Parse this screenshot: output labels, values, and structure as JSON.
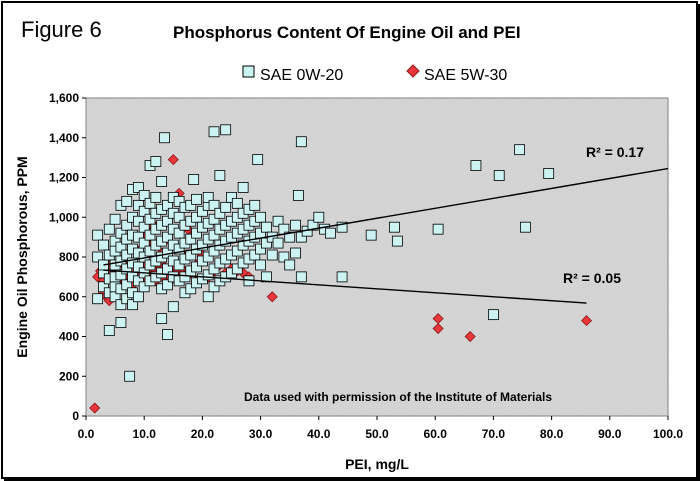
{
  "figure_label": "Figure 6",
  "chart_data": {
    "type": "scatter",
    "title": "Phosphorus Content Of Engine Oil and PEI",
    "xlabel": "PEI, mg/L",
    "ylabel": "Engine Oil Phosphorous, PPM",
    "xlim": [
      0,
      100
    ],
    "ylim": [
      0,
      1600
    ],
    "x_ticks": [
      "0.0",
      "10.0",
      "20.0",
      "30.0",
      "40.0",
      "50.0",
      "60.0",
      "70.0",
      "80.0",
      "90.0",
      "100.0"
    ],
    "y_ticks": [
      "0",
      "200",
      "400",
      "600",
      "800",
      "1,000",
      "1,200",
      "1,400",
      "1,600"
    ],
    "grid": false,
    "legend_position": "top",
    "annotation": "Data used with permission of the Institute of Materials",
    "series": [
      {
        "name": "SAE 0W-20",
        "marker": "square",
        "color": "#ccf2f2",
        "stroke": "#000000",
        "points": [
          [
            2,
            590
          ],
          [
            2,
            800
          ],
          [
            2,
            910
          ],
          [
            3,
            650
          ],
          [
            3,
            720
          ],
          [
            3,
            760
          ],
          [
            3,
            860
          ],
          [
            4,
            430
          ],
          [
            4,
            620
          ],
          [
            4,
            690
          ],
          [
            4,
            810
          ],
          [
            4,
            940
          ],
          [
            5,
            600
          ],
          [
            5,
            650
          ],
          [
            5,
            700
          ],
          [
            5,
            760
          ],
          [
            5,
            830
          ],
          [
            5,
            880
          ],
          [
            5,
            990
          ],
          [
            6,
            470
          ],
          [
            6,
            560
          ],
          [
            6,
            640
          ],
          [
            6,
            710
          ],
          [
            6,
            780
          ],
          [
            6,
            850
          ],
          [
            6,
            920
          ],
          [
            6,
            1060
          ],
          [
            7,
            590
          ],
          [
            7,
            660
          ],
          [
            7,
            740
          ],
          [
            7,
            810
          ],
          [
            7,
            890
          ],
          [
            7,
            960
          ],
          [
            7,
            1080
          ],
          [
            7.5,
            200
          ],
          [
            8,
            560
          ],
          [
            8,
            620
          ],
          [
            8,
            700
          ],
          [
            8,
            770
          ],
          [
            8,
            840
          ],
          [
            8,
            910
          ],
          [
            8,
            1000
          ],
          [
            8,
            1140
          ],
          [
            9,
            600
          ],
          [
            9,
            680
          ],
          [
            9,
            750
          ],
          [
            9,
            820
          ],
          [
            9,
            900
          ],
          [
            9,
            980
          ],
          [
            9,
            1060
          ],
          [
            9,
            1150
          ],
          [
            10,
            650
          ],
          [
            10,
            720
          ],
          [
            10,
            800
          ],
          [
            10,
            870
          ],
          [
            10,
            950
          ],
          [
            10,
            1030
          ],
          [
            10,
            1110
          ],
          [
            11,
            680
          ],
          [
            11,
            760
          ],
          [
            11,
            830
          ],
          [
            11,
            910
          ],
          [
            11,
            990
          ],
          [
            11,
            1070
          ],
          [
            11,
            1260
          ],
          [
            12,
            700
          ],
          [
            12,
            780
          ],
          [
            12,
            860
          ],
          [
            12,
            940
          ],
          [
            12,
            1020
          ],
          [
            12,
            1100
          ],
          [
            12,
            1280
          ],
          [
            13,
            490
          ],
          [
            13,
            640
          ],
          [
            13,
            720
          ],
          [
            13,
            800
          ],
          [
            13,
            880
          ],
          [
            13,
            960
          ],
          [
            13,
            1040
          ],
          [
            13,
            1180
          ],
          [
            13.5,
            1400
          ],
          [
            14,
            410
          ],
          [
            14,
            660
          ],
          [
            14,
            740
          ],
          [
            14,
            820
          ],
          [
            14,
            900
          ],
          [
            14,
            980
          ],
          [
            14,
            1060
          ],
          [
            15,
            550
          ],
          [
            15,
            700
          ],
          [
            15,
            780
          ],
          [
            15,
            860
          ],
          [
            15,
            940
          ],
          [
            15,
            1020
          ],
          [
            15,
            1100
          ],
          [
            16,
            680
          ],
          [
            16,
            760
          ],
          [
            16,
            840
          ],
          [
            16,
            920
          ],
          [
            16,
            1000
          ],
          [
            16,
            1080
          ],
          [
            17,
            620
          ],
          [
            17,
            700
          ],
          [
            17,
            790
          ],
          [
            17,
            870
          ],
          [
            17,
            960
          ],
          [
            17,
            1050
          ],
          [
            18,
            640
          ],
          [
            18,
            730
          ],
          [
            18,
            810
          ],
          [
            18,
            890
          ],
          [
            18,
            980
          ],
          [
            18,
            1060
          ],
          [
            18.5,
            1190
          ],
          [
            19,
            670
          ],
          [
            19,
            750
          ],
          [
            19,
            840
          ],
          [
            19,
            920
          ],
          [
            19,
            1000
          ],
          [
            19,
            1090
          ],
          [
            20,
            690
          ],
          [
            20,
            780
          ],
          [
            20,
            860
          ],
          [
            20,
            950
          ],
          [
            20,
            1030
          ],
          [
            21,
            600
          ],
          [
            21,
            710
          ],
          [
            21,
            800
          ],
          [
            21,
            890
          ],
          [
            21,
            970
          ],
          [
            21,
            1060
          ],
          [
            21,
            1100
          ],
          [
            22,
            650
          ],
          [
            22,
            740
          ],
          [
            22,
            830
          ],
          [
            22,
            910
          ],
          [
            22,
            990
          ],
          [
            22,
            1060
          ],
          [
            22,
            1430
          ],
          [
            23,
            680
          ],
          [
            23,
            770
          ],
          [
            23,
            860
          ],
          [
            23,
            940
          ],
          [
            23,
            1020
          ],
          [
            23,
            1210
          ],
          [
            24,
            700
          ],
          [
            24,
            790
          ],
          [
            24,
            880
          ],
          [
            24,
            960
          ],
          [
            24,
            1050
          ],
          [
            24,
            1440
          ],
          [
            25,
            720
          ],
          [
            25,
            810
          ],
          [
            25,
            900
          ],
          [
            25,
            980
          ],
          [
            25,
            1100
          ],
          [
            26,
            740
          ],
          [
            26,
            830
          ],
          [
            26,
            920
          ],
          [
            26,
            1000
          ],
          [
            26,
            1070
          ],
          [
            27,
            770
          ],
          [
            27,
            860
          ],
          [
            27,
            940
          ],
          [
            27,
            1020
          ],
          [
            27,
            1150
          ],
          [
            28,
            680
          ],
          [
            28,
            790
          ],
          [
            28,
            880
          ],
          [
            28,
            960
          ],
          [
            28,
            1040
          ],
          [
            29,
            810
          ],
          [
            29,
            900
          ],
          [
            29,
            980
          ],
          [
            29,
            1060
          ],
          [
            29.5,
            1290
          ],
          [
            30,
            760
          ],
          [
            30,
            840
          ],
          [
            30,
            920
          ],
          [
            30,
            1000
          ],
          [
            31,
            700
          ],
          [
            31,
            870
          ],
          [
            31,
            950
          ],
          [
            32,
            810
          ],
          [
            32,
            900
          ],
          [
            33,
            870
          ],
          [
            33,
            980
          ],
          [
            34,
            800
          ],
          [
            34,
            940
          ],
          [
            35,
            760
          ],
          [
            35,
            900
          ],
          [
            36,
            820
          ],
          [
            36,
            960
          ],
          [
            36.5,
            1110
          ],
          [
            37,
            700
          ],
          [
            37,
            900
          ],
          [
            37,
            1380
          ],
          [
            38,
            930
          ],
          [
            39,
            960
          ],
          [
            40,
            1000
          ],
          [
            41,
            940
          ],
          [
            42,
            920
          ],
          [
            44,
            700
          ],
          [
            44,
            950
          ],
          [
            49,
            910
          ],
          [
            53,
            950
          ],
          [
            53.5,
            880
          ],
          [
            60.5,
            940
          ],
          [
            67,
            1260
          ],
          [
            70,
            510
          ],
          [
            71,
            1210
          ],
          [
            74.5,
            1340
          ],
          [
            75.5,
            950
          ],
          [
            79.5,
            1220
          ]
        ],
        "trendline": {
          "slope": 5.0,
          "intercept": 745,
          "r2_label": "R² = 0.17",
          "x_range": [
            3,
            100
          ]
        }
      },
      {
        "name": "SAE 5W-30",
        "marker": "diamond",
        "color": "#e8363b",
        "stroke": "#8b1a1a",
        "points": [
          [
            1.5,
            40
          ],
          [
            2,
            700
          ],
          [
            2.5,
            730
          ],
          [
            3,
            680
          ],
          [
            3,
            620
          ],
          [
            3.5,
            750
          ],
          [
            3.5,
            600
          ],
          [
            4,
            710
          ],
          [
            4,
            580
          ],
          [
            4.5,
            770
          ],
          [
            5,
            690
          ],
          [
            5,
            740
          ],
          [
            5.5,
            720
          ],
          [
            6,
            650
          ],
          [
            6,
            700
          ],
          [
            6.5,
            760
          ],
          [
            7,
            680
          ],
          [
            7,
            740
          ],
          [
            7.5,
            700
          ],
          [
            8,
            660
          ],
          [
            8,
            720
          ],
          [
            8.5,
            690
          ],
          [
            8.5,
            760
          ],
          [
            9,
            710
          ],
          [
            9,
            830
          ],
          [
            9.5,
            680
          ],
          [
            9.5,
            740
          ],
          [
            10,
            700
          ],
          [
            10,
            760
          ],
          [
            10,
            900
          ],
          [
            10.5,
            720
          ],
          [
            10.5,
            960
          ],
          [
            11,
            690
          ],
          [
            11,
            740
          ],
          [
            11,
            920
          ],
          [
            11.5,
            710
          ],
          [
            11.5,
            870
          ],
          [
            12,
            680
          ],
          [
            12,
            730
          ],
          [
            12,
            950
          ],
          [
            12.5,
            700
          ],
          [
            12.5,
            760
          ],
          [
            13,
            720
          ],
          [
            13,
            820
          ],
          [
            13.5,
            690
          ],
          [
            13.5,
            750
          ],
          [
            14,
            710
          ],
          [
            14,
            890
          ],
          [
            14.5,
            680
          ],
          [
            14.5,
            740
          ],
          [
            15,
            1290
          ],
          [
            15,
            700
          ],
          [
            15,
            760
          ],
          [
            15.5,
            720
          ],
          [
            16,
            1120
          ],
          [
            16,
            680
          ],
          [
            16.5,
            740
          ],
          [
            17,
            700
          ],
          [
            17,
            800
          ],
          [
            17.5,
            940
          ],
          [
            18,
            900
          ],
          [
            18,
            720
          ],
          [
            19,
            760
          ],
          [
            19,
            680
          ],
          [
            20,
            810
          ],
          [
            21,
            700
          ],
          [
            22,
            730
          ],
          [
            23,
            760
          ],
          [
            24,
            720
          ],
          [
            25,
            740
          ],
          [
            26,
            730
          ],
          [
            27,
            720
          ],
          [
            28,
            700
          ],
          [
            32,
            600
          ],
          [
            60.5,
            490
          ],
          [
            60.5,
            440
          ],
          [
            66,
            400
          ],
          [
            86,
            480
          ]
        ],
        "trendline": {
          "slope": -2.0,
          "intercept": 740,
          "r2_label": "R² = 0.05",
          "x_range": [
            3,
            86
          ]
        }
      }
    ]
  }
}
